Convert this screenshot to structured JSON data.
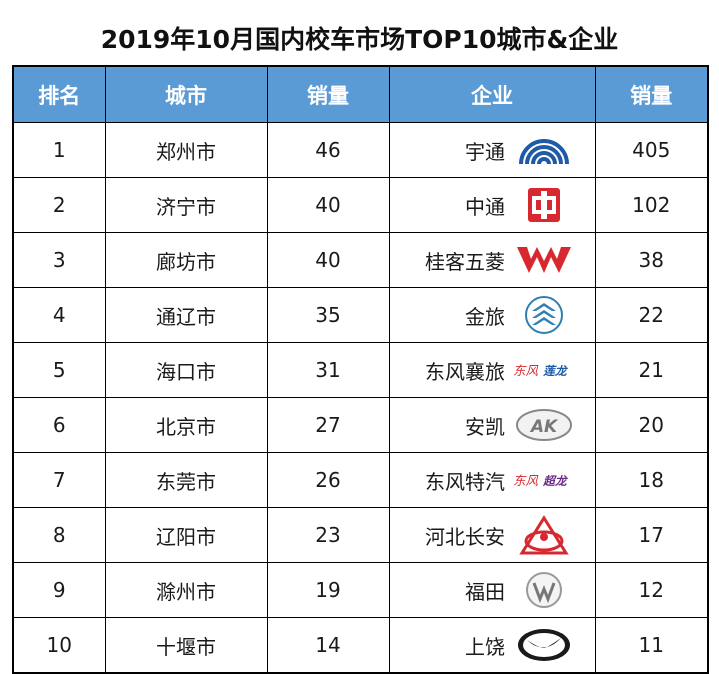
{
  "title": "2019年10月国内校车市场TOP10城市&企业",
  "headers": [
    "排名",
    "城市",
    "销量",
    "企业",
    "销量"
  ],
  "rows": [
    {
      "rank": "1",
      "city": "郑州市",
      "city_sales": "46",
      "company": "宇通",
      "company_sales": "405",
      "logo_icon": "yutong-logo-icon"
    },
    {
      "rank": "2",
      "city": "济宁市",
      "city_sales": "40",
      "company": "中通",
      "company_sales": "102",
      "logo_icon": "zhongtong-logo-icon"
    },
    {
      "rank": "3",
      "city": "廊坊市",
      "city_sales": "40",
      "company": "桂客五菱",
      "company_sales": "38",
      "logo_icon": "wuling-logo-icon"
    },
    {
      "rank": "4",
      "city": "通辽市",
      "city_sales": "35",
      "company": "金旅",
      "company_sales": "22",
      "logo_icon": "golden-dragon-logo-icon"
    },
    {
      "rank": "5",
      "city": "海口市",
      "city_sales": "31",
      "company": "东风襄旅",
      "company_sales": "21",
      "logo_icon": "dongfeng-balong-logo-icon"
    },
    {
      "rank": "6",
      "city": "北京市",
      "city_sales": "27",
      "company": "安凯",
      "company_sales": "20",
      "logo_icon": "ankai-logo-icon"
    },
    {
      "rank": "7",
      "city": "东莞市",
      "city_sales": "26",
      "company": "东风特汽",
      "company_sales": "18",
      "logo_icon": "dongfeng-chaolong-logo-icon"
    },
    {
      "rank": "8",
      "city": "辽阳市",
      "city_sales": "23",
      "company": "河北长安",
      "company_sales": "17",
      "logo_icon": "changan-logo-icon"
    },
    {
      "rank": "9",
      "city": "滁州市",
      "city_sales": "19",
      "company": "福田",
      "company_sales": "12",
      "logo_icon": "foton-logo-icon"
    },
    {
      "rank": "10",
      "city": "十堰市",
      "city_sales": "14",
      "company": "上饶",
      "company_sales": "11",
      "logo_icon": "shangrao-logo-icon"
    }
  ],
  "logo_text": {
    "dongfeng": "东风",
    "balong": "莲龙",
    "chaolong": "超龙"
  },
  "colors": {
    "header_bg": "#5b9bd5",
    "header_text": "#ffffff",
    "yutong_blue": "#1f5aa6",
    "red": "#d7282f",
    "teal": "#2f7fb3"
  }
}
